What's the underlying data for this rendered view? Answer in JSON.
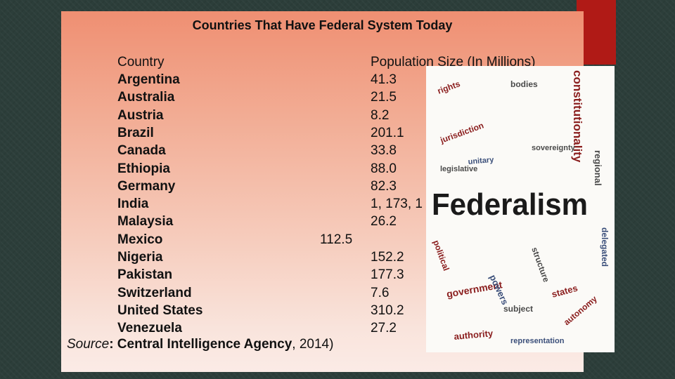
{
  "title": "Countries That Have Federal System Today",
  "table": {
    "headers": {
      "country": "Country",
      "population": "Population Size (In Millions)"
    },
    "rows": [
      {
        "country": "Argentina",
        "population": "41.3"
      },
      {
        "country": "Australia",
        "population": "21.5"
      },
      {
        "country": "Austria",
        "population": "8.2"
      },
      {
        "country": "Brazil",
        "population": "201.1"
      },
      {
        "country": "Canada",
        "population": "33.8"
      },
      {
        "country": "Ethiopia",
        "population": "88.0"
      },
      {
        "country": "Germany",
        "population": "82.3"
      },
      {
        "country": "India",
        "population": "1, 173, 1"
      },
      {
        "country": "Malaysia",
        "population": "26.2"
      },
      {
        "country": "Mexico",
        "population": "112.5"
      },
      {
        "country": "Nigeria",
        "population": "152.2"
      },
      {
        "country": "Pakistan",
        "population": "177.3"
      },
      {
        "country": "Switzerland",
        "population": "7.6"
      },
      {
        "country": "United States",
        "population": "310.2"
      },
      {
        "country": "Venezuela",
        "population": "27.2"
      }
    ]
  },
  "source": {
    "label": "Source",
    "text": ": Central Intelligence Agency",
    "year": ", 2014)"
  },
  "word_cloud": {
    "main_word": "Federalism",
    "words": [
      "constitutionality",
      "regional",
      "rights",
      "bodies",
      "delegated",
      "jurisdiction",
      "political",
      "government",
      "powers",
      "structure",
      "subject",
      "authority",
      "states",
      "unitary",
      "sovereignty",
      "autonomy",
      "legislative",
      "representation"
    ]
  },
  "colors": {
    "accent": "#b01a16",
    "background": "#2c3e3a",
    "cloud_red": "#8a1d1d",
    "cloud_blue": "#3b4f7a",
    "cloud_gray": "#4a4a4a"
  }
}
